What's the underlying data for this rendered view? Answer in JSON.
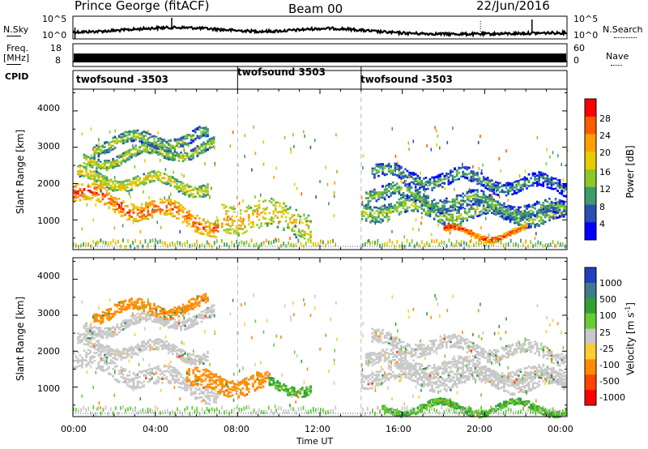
{
  "header": {
    "station": "Prince George (fitACF)",
    "beam": "Beam 00",
    "date": "22/Jun/2016"
  },
  "side_labels": {
    "nsky": "N.Sky",
    "freq": "Freq.",
    "freq_unit": "[MHz]",
    "cpid": "CPID",
    "nsearch": "N.Search",
    "nave": "Nave"
  },
  "time_axis": {
    "label": "Time UT",
    "ticks": [
      "00:00",
      "04:00",
      "08:00",
      "12:00",
      "16:00",
      "20:00",
      "00:00"
    ]
  },
  "noise_axis": {
    "left_ticks": [
      "10^5",
      "10^0"
    ],
    "right_ticks": [
      "10^5",
      "10^0"
    ]
  },
  "freq_axis": {
    "left_ticks": [
      "18",
      "8"
    ],
    "right_ticks": [
      "60",
      "0"
    ]
  },
  "cpid_segments": [
    {
      "label": "twofsound -3503",
      "start_hour": 0.0,
      "end_hour": 8.0
    },
    {
      "label": "twofsound 3503",
      "start_hour": 8.0,
      "end_hour": 14.0
    },
    {
      "label": "twofsound -3503",
      "start_hour": 14.0,
      "end_hour": 24.0
    }
  ],
  "power_panel": {
    "ylabel": "Slant Range [km]",
    "yticks": [
      "4000",
      "3000",
      "2000",
      "1000"
    ],
    "colorbar_label": "Power [dB]",
    "colorbar_ticks": [
      "28",
      "24",
      "20",
      "16",
      "12",
      "8",
      "4"
    ],
    "colorbar_colors": [
      "#ff0000",
      "#ff5a00",
      "#ffa000",
      "#e6cc00",
      "#8cc828",
      "#3c9c6a",
      "#2850b4",
      "#0000ff"
    ]
  },
  "velocity_panel": {
    "ylabel": "Slant Range [km]",
    "yticks": [
      "4000",
      "3000",
      "2000",
      "1000"
    ],
    "colorbar_label": "Velocity [m s^-1]",
    "colorbar_ticks": [
      "1000",
      "500",
      "100",
      "25",
      "-25",
      "-100",
      "-500",
      "-1000"
    ],
    "colorbar_colors": [
      "#2040c0",
      "#3c7c8c",
      "#33a033",
      "#66cc33",
      "#c8c8c8",
      "#ffcc33",
      "#ff8c00",
      "#ff4400",
      "#ff0000"
    ]
  },
  "chart_data": [
    {
      "type": "heatmap",
      "title": "Power",
      "xlabel": "Time UT",
      "ylabel": "Slant Range [km]",
      "xlim": [
        0,
        24
      ],
      "ylim": [
        180,
        4600
      ],
      "bands": [
        {
          "t0": 0.0,
          "t1": 7.0,
          "r_center": 1750,
          "r_width": 220,
          "power": 26,
          "slope": -120
        },
        {
          "t0": 0.2,
          "t1": 6.5,
          "r_center": 2200,
          "r_width": 140,
          "power": 18,
          "slope": -40
        },
        {
          "t0": 0.5,
          "t1": 6.8,
          "r_center": 2650,
          "r_width": 130,
          "power": 16,
          "slope": 60
        },
        {
          "t0": 1.0,
          "t1": 6.5,
          "r_center": 3100,
          "r_width": 150,
          "power": 14,
          "slope": 40
        },
        {
          "t0": 7.2,
          "t1": 11.5,
          "r_center": 1200,
          "r_width": 350,
          "power": 20,
          "slope": -60
        },
        {
          "t0": 14.0,
          "t1": 24.0,
          "r_center": 1350,
          "r_width": 200,
          "power": 14,
          "slope": -20
        },
        {
          "t0": 14.2,
          "t1": 24.0,
          "r_center": 1800,
          "r_width": 180,
          "power": 12,
          "slope": -60
        },
        {
          "t0": 14.5,
          "t1": 24.0,
          "r_center": 2300,
          "r_width": 170,
          "power": 10,
          "slope": -40
        },
        {
          "t0": 18.0,
          "t1": 22.0,
          "r_center": 650,
          "r_width": 70,
          "power": 28,
          "slope": 0
        }
      ]
    },
    {
      "type": "heatmap",
      "title": "Velocity",
      "xlabel": "Time UT",
      "ylabel": "Slant Range [km]",
      "xlim": [
        0,
        24
      ],
      "ylim": [
        180,
        4600
      ],
      "bands": [
        {
          "t0": 0.0,
          "t1": 7.0,
          "r_center": 1750,
          "r_width": 220,
          "velocity": 0,
          "slope": -120
        },
        {
          "t0": 0.2,
          "t1": 6.5,
          "r_center": 2200,
          "r_width": 140,
          "velocity": 0,
          "slope": -40
        },
        {
          "t0": 0.5,
          "t1": 6.8,
          "r_center": 2650,
          "r_width": 130,
          "velocity": 0,
          "slope": 60
        },
        {
          "t0": 1.0,
          "t1": 6.5,
          "r_center": 3100,
          "r_width": 150,
          "velocity": -150,
          "slope": 40
        },
        {
          "t0": 5.5,
          "t1": 9.5,
          "r_center": 1150,
          "r_width": 220,
          "velocity": -300,
          "slope": 0
        },
        {
          "t0": 9.5,
          "t1": 11.5,
          "r_center": 1050,
          "r_width": 120,
          "velocity": 100,
          "slope": 0
        },
        {
          "t0": 14.0,
          "t1": 24.0,
          "r_center": 1350,
          "r_width": 200,
          "velocity": 0,
          "slope": -20
        },
        {
          "t0": 14.2,
          "t1": 24.0,
          "r_center": 1800,
          "r_width": 180,
          "velocity": 0,
          "slope": -60
        },
        {
          "t0": 14.5,
          "t1": 24.0,
          "r_center": 2300,
          "r_width": 170,
          "velocity": 0,
          "slope": -40
        },
        {
          "t0": 15.0,
          "t1": 24.0,
          "r_center": 450,
          "r_width": 80,
          "velocity": 100,
          "slope": 0
        }
      ]
    }
  ]
}
